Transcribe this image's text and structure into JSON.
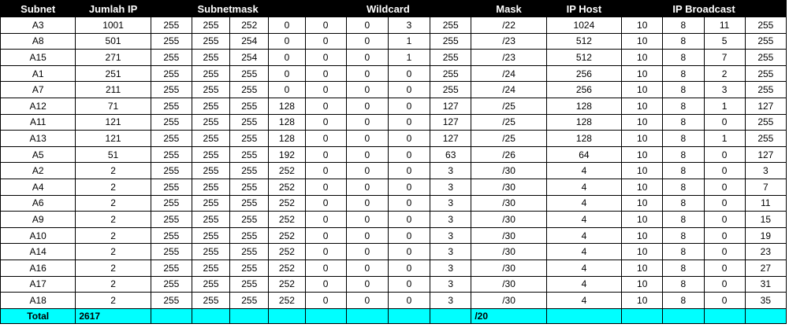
{
  "headers": {
    "subnet": "Subnet",
    "jumlah_ip": "Jumlah IP",
    "subnetmask": "Subnetmask",
    "wildcard": "Wildcard",
    "mask": "Mask",
    "ip_host": "IP Host",
    "ip_broadcast": "IP Broadcast"
  },
  "rows": [
    {
      "subnet": "A3",
      "jumlah": "1001",
      "sm": [
        "255",
        "255",
        "252",
        "0"
      ],
      "wc": [
        "0",
        "0",
        "3",
        "255"
      ],
      "mask": "/22",
      "host": "1024",
      "bc": [
        "10",
        "8",
        "11",
        "255"
      ]
    },
    {
      "subnet": "A8",
      "jumlah": "501",
      "sm": [
        "255",
        "255",
        "254",
        "0"
      ],
      "wc": [
        "0",
        "0",
        "1",
        "255"
      ],
      "mask": "/23",
      "host": "512",
      "bc": [
        "10",
        "8",
        "5",
        "255"
      ]
    },
    {
      "subnet": "A15",
      "jumlah": "271",
      "sm": [
        "255",
        "255",
        "254",
        "0"
      ],
      "wc": [
        "0",
        "0",
        "1",
        "255"
      ],
      "mask": "/23",
      "host": "512",
      "bc": [
        "10",
        "8",
        "7",
        "255"
      ]
    },
    {
      "subnet": "A1",
      "jumlah": "251",
      "sm": [
        "255",
        "255",
        "255",
        "0"
      ],
      "wc": [
        "0",
        "0",
        "0",
        "255"
      ],
      "mask": "/24",
      "host": "256",
      "bc": [
        "10",
        "8",
        "2",
        "255"
      ]
    },
    {
      "subnet": "A7",
      "jumlah": "211",
      "sm": [
        "255",
        "255",
        "255",
        "0"
      ],
      "wc": [
        "0",
        "0",
        "0",
        "255"
      ],
      "mask": "/24",
      "host": "256",
      "bc": [
        "10",
        "8",
        "3",
        "255"
      ]
    },
    {
      "subnet": "A12",
      "jumlah": "71",
      "sm": [
        "255",
        "255",
        "255",
        "128"
      ],
      "wc": [
        "0",
        "0",
        "0",
        "127"
      ],
      "mask": "/25",
      "host": "128",
      "bc": [
        "10",
        "8",
        "1",
        "127"
      ]
    },
    {
      "subnet": "A11",
      "jumlah": "121",
      "sm": [
        "255",
        "255",
        "255",
        "128"
      ],
      "wc": [
        "0",
        "0",
        "0",
        "127"
      ],
      "mask": "/25",
      "host": "128",
      "bc": [
        "10",
        "8",
        "0",
        "255"
      ]
    },
    {
      "subnet": "A13",
      "jumlah": "121",
      "sm": [
        "255",
        "255",
        "255",
        "128"
      ],
      "wc": [
        "0",
        "0",
        "0",
        "127"
      ],
      "mask": "/25",
      "host": "128",
      "bc": [
        "10",
        "8",
        "1",
        "255"
      ]
    },
    {
      "subnet": "A5",
      "jumlah": "51",
      "sm": [
        "255",
        "255",
        "255",
        "192"
      ],
      "wc": [
        "0",
        "0",
        "0",
        "63"
      ],
      "mask": "/26",
      "host": "64",
      "bc": [
        "10",
        "8",
        "0",
        "127"
      ]
    },
    {
      "subnet": "A2",
      "jumlah": "2",
      "sm": [
        "255",
        "255",
        "255",
        "252"
      ],
      "wc": [
        "0",
        "0",
        "0",
        "3"
      ],
      "mask": "/30",
      "host": "4",
      "bc": [
        "10",
        "8",
        "0",
        "3"
      ]
    },
    {
      "subnet": "A4",
      "jumlah": "2",
      "sm": [
        "255",
        "255",
        "255",
        "252"
      ],
      "wc": [
        "0",
        "0",
        "0",
        "3"
      ],
      "mask": "/30",
      "host": "4",
      "bc": [
        "10",
        "8",
        "0",
        "7"
      ]
    },
    {
      "subnet": "A6",
      "jumlah": "2",
      "sm": [
        "255",
        "255",
        "255",
        "252"
      ],
      "wc": [
        "0",
        "0",
        "0",
        "3"
      ],
      "mask": "/30",
      "host": "4",
      "bc": [
        "10",
        "8",
        "0",
        "11"
      ]
    },
    {
      "subnet": "A9",
      "jumlah": "2",
      "sm": [
        "255",
        "255",
        "255",
        "252"
      ],
      "wc": [
        "0",
        "0",
        "0",
        "3"
      ],
      "mask": "/30",
      "host": "4",
      "bc": [
        "10",
        "8",
        "0",
        "15"
      ]
    },
    {
      "subnet": "A10",
      "jumlah": "2",
      "sm": [
        "255",
        "255",
        "255",
        "252"
      ],
      "wc": [
        "0",
        "0",
        "0",
        "3"
      ],
      "mask": "/30",
      "host": "4",
      "bc": [
        "10",
        "8",
        "0",
        "19"
      ]
    },
    {
      "subnet": "A14",
      "jumlah": "2",
      "sm": [
        "255",
        "255",
        "255",
        "252"
      ],
      "wc": [
        "0",
        "0",
        "0",
        "3"
      ],
      "mask": "/30",
      "host": "4",
      "bc": [
        "10",
        "8",
        "0",
        "23"
      ]
    },
    {
      "subnet": "A16",
      "jumlah": "2",
      "sm": [
        "255",
        "255",
        "255",
        "252"
      ],
      "wc": [
        "0",
        "0",
        "0",
        "3"
      ],
      "mask": "/30",
      "host": "4",
      "bc": [
        "10",
        "8",
        "0",
        "27"
      ]
    },
    {
      "subnet": "A17",
      "jumlah": "2",
      "sm": [
        "255",
        "255",
        "255",
        "252"
      ],
      "wc": [
        "0",
        "0",
        "0",
        "3"
      ],
      "mask": "/30",
      "host": "4",
      "bc": [
        "10",
        "8",
        "0",
        "31"
      ]
    },
    {
      "subnet": "A18",
      "jumlah": "2",
      "sm": [
        "255",
        "255",
        "255",
        "252"
      ],
      "wc": [
        "0",
        "0",
        "0",
        "3"
      ],
      "mask": "/30",
      "host": "4",
      "bc": [
        "10",
        "8",
        "0",
        "35"
      ]
    }
  ],
  "total": {
    "label": "Total",
    "jumlah_ip": "2617",
    "mask": "/20"
  },
  "colors": {
    "header_bg": "#000000",
    "header_text": "#ffffff",
    "total_bg": "#00ffff",
    "grid": "#000000"
  }
}
